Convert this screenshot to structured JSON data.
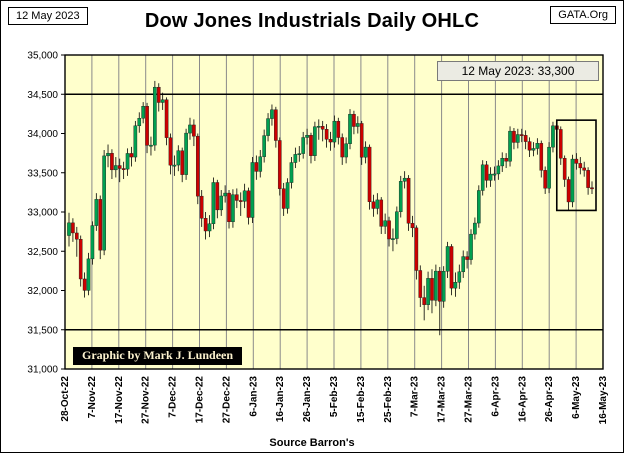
{
  "header": {
    "date_label": "12 May 2023",
    "org_label": "GATA.Org",
    "title": "Dow Jones Industrials Daily OHLC"
  },
  "footer": {
    "source": "Source Barron's"
  },
  "chart_data": {
    "type": "candlestick",
    "title": "Dow Jones Industrials Daily OHLC",
    "ylim": [
      31000,
      35000
    ],
    "y_tick_step": 500,
    "y_tick_labels": [
      "31,000",
      "31,500",
      "32,000",
      "32,500",
      "33,000",
      "33,500",
      "34,000",
      "34,500",
      "35,000"
    ],
    "x_tick_labels": [
      "28-Oct-22",
      "7-Nov-22",
      "17-Nov-22",
      "27-Nov-22",
      "7-Dec-22",
      "17-Dec-22",
      "27-Dec-22",
      "6-Jan-23",
      "16-Jan-23",
      "26-Jan-23",
      "5-Feb-23",
      "15-Feb-23",
      "25-Feb-23",
      "7-Mar-23",
      "17-Mar-23",
      "27-Mar-23",
      "6-Apr-23",
      "16-Apr-23",
      "26-Apr-23",
      "6-May-23",
      "16-May-23"
    ],
    "grid": {
      "vertical": true,
      "horizontal": false
    },
    "grid_color": "#8a8a8a",
    "level_lines": [
      34500,
      31500
    ],
    "plot_bg": "#ffffcc",
    "up_color": "#00a050",
    "down_color": "#cc0000",
    "wick_color": "#000000",
    "annotation": {
      "text": "12 May 2023:  33,300"
    },
    "credit": {
      "text": "Graphic by Mark J. Lundeen"
    },
    "highlight": {
      "from_index": 126,
      "to_index": 134,
      "value_top": 34170,
      "value_bottom": 33020
    },
    "candles": [
      [
        32700,
        32990,
        32560,
        32862
      ],
      [
        32862,
        32920,
        32620,
        32733
      ],
      [
        32733,
        32810,
        32430,
        32653
      ],
      [
        32653,
        32700,
        32050,
        32147
      ],
      [
        32147,
        32230,
        31910,
        32001
      ],
      [
        32001,
        32480,
        31940,
        32403
      ],
      [
        32403,
        32880,
        32330,
        32827
      ],
      [
        32827,
        33240,
        32760,
        33161
      ],
      [
        33161,
        33210,
        32400,
        32514
      ],
      [
        32514,
        33790,
        32450,
        33715
      ],
      [
        33715,
        33860,
        33570,
        33748
      ],
      [
        33748,
        33800,
        33420,
        33537
      ],
      [
        33537,
        33700,
        33440,
        33592
      ],
      [
        33592,
        33680,
        33380,
        33554
      ],
      [
        33554,
        33640,
        33420,
        33546
      ],
      [
        33546,
        33810,
        33460,
        33746
      ],
      [
        33746,
        33830,
        33580,
        33700
      ],
      [
        33700,
        34160,
        33640,
        34098
      ],
      [
        34098,
        34270,
        34010,
        34194
      ],
      [
        34194,
        34400,
        34130,
        34347
      ],
      [
        34347,
        34390,
        33750,
        33849
      ],
      [
        33849,
        33960,
        33720,
        33852
      ],
      [
        33852,
        34670,
        33780,
        34590
      ],
      [
        34590,
        34640,
        34280,
        34395
      ],
      [
        34395,
        34520,
        34300,
        34430
      ],
      [
        34430,
        34460,
        33850,
        33947
      ],
      [
        33947,
        34000,
        33480,
        33596
      ],
      [
        33596,
        33720,
        33460,
        33598
      ],
      [
        33598,
        33850,
        33520,
        33781
      ],
      [
        33781,
        33820,
        33380,
        33476
      ],
      [
        33476,
        34060,
        33410,
        34005
      ],
      [
        34005,
        34200,
        33920,
        34109
      ],
      [
        34109,
        34180,
        33840,
        33966
      ],
      [
        33966,
        34000,
        33100,
        33202
      ],
      [
        33202,
        33280,
        32810,
        32920
      ],
      [
        32920,
        33000,
        32650,
        32758
      ],
      [
        32758,
        32960,
        32680,
        32850
      ],
      [
        32850,
        33440,
        32780,
        33376
      ],
      [
        33376,
        33410,
        32920,
        33027
      ],
      [
        33027,
        33280,
        32950,
        33204
      ],
      [
        33204,
        33340,
        33120,
        33241
      ],
      [
        33241,
        33280,
        32790,
        32875
      ],
      [
        32875,
        33290,
        32800,
        33221
      ],
      [
        33221,
        33300,
        33050,
        33147
      ],
      [
        33147,
        33250,
        32950,
        33136
      ],
      [
        33136,
        33360,
        33050,
        33270
      ],
      [
        33270,
        33310,
        32840,
        32930
      ],
      [
        32930,
        33700,
        32860,
        33631
      ],
      [
        33631,
        33720,
        33410,
        33517
      ],
      [
        33517,
        33790,
        33440,
        33704
      ],
      [
        33704,
        34050,
        33630,
        33973
      ],
      [
        33973,
        34260,
        33900,
        34190
      ],
      [
        34190,
        34370,
        34100,
        34303
      ],
      [
        34303,
        34340,
        33820,
        33911
      ],
      [
        33911,
        33950,
        33210,
        33297
      ],
      [
        33297,
        33370,
        32950,
        33045
      ],
      [
        33045,
        33430,
        32980,
        33375
      ],
      [
        33375,
        33700,
        33300,
        33630
      ],
      [
        33630,
        33820,
        33560,
        33734
      ],
      [
        33734,
        33840,
        33640,
        33744
      ],
      [
        33744,
        34020,
        33680,
        33949
      ],
      [
        33949,
        34060,
        33860,
        33978
      ],
      [
        33978,
        34010,
        33620,
        33717
      ],
      [
        33717,
        34150,
        33650,
        34086
      ],
      [
        34086,
        34180,
        33920,
        34093
      ],
      [
        34093,
        34160,
        33900,
        34054
      ],
      [
        34054,
        34120,
        33820,
        33926
      ],
      [
        33926,
        34020,
        33780,
        33891
      ],
      [
        33891,
        34230,
        33820,
        34157
      ],
      [
        34157,
        34200,
        33860,
        33949
      ],
      [
        33949,
        34000,
        33600,
        33700
      ],
      [
        33700,
        33950,
        33620,
        33869
      ],
      [
        33869,
        34310,
        33800,
        34246
      ],
      [
        34246,
        34290,
        33990,
        34089
      ],
      [
        34089,
        34220,
        34000,
        34128
      ],
      [
        34128,
        34160,
        33600,
        33697
      ],
      [
        33697,
        33900,
        33620,
        33827
      ],
      [
        33827,
        33860,
        33030,
        33130
      ],
      [
        33130,
        33220,
        32940,
        33045
      ],
      [
        33045,
        33240,
        32970,
        33154
      ],
      [
        33154,
        33190,
        32720,
        32817
      ],
      [
        32817,
        32980,
        32720,
        32889
      ],
      [
        32889,
        32940,
        32560,
        32656
      ],
      [
        32656,
        32790,
        32500,
        32662
      ],
      [
        32662,
        33070,
        32590,
        33003
      ],
      [
        33003,
        33460,
        32930,
        33391
      ],
      [
        33391,
        33520,
        33300,
        33431
      ],
      [
        33431,
        33470,
        32760,
        32856
      ],
      [
        32856,
        32950,
        32680,
        32798
      ],
      [
        32798,
        32830,
        32140,
        32255
      ],
      [
        32255,
        32320,
        31790,
        31910
      ],
      [
        31910,
        32060,
        31620,
        31819
      ],
      [
        31819,
        32240,
        31750,
        32155
      ],
      [
        32155,
        32270,
        31710,
        31875
      ],
      [
        31875,
        32330,
        31800,
        32247
      ],
      [
        32247,
        32300,
        31430,
        31862
      ],
      [
        31862,
        32310,
        31780,
        32245
      ],
      [
        32245,
        32620,
        32160,
        32561
      ],
      [
        32561,
        32590,
        31940,
        32030
      ],
      [
        32030,
        32230,
        31920,
        32105
      ],
      [
        32105,
        32330,
        32020,
        32238
      ],
      [
        32238,
        32510,
        32160,
        32432
      ],
      [
        32432,
        32500,
        32280,
        32394
      ],
      [
        32394,
        32780,
        32330,
        32718
      ],
      [
        32718,
        32930,
        32650,
        32859
      ],
      [
        32859,
        33340,
        32800,
        33274
      ],
      [
        33274,
        33660,
        33210,
        33601
      ],
      [
        33601,
        33650,
        33310,
        33403
      ],
      [
        33403,
        33570,
        33320,
        33483
      ],
      [
        33483,
        33580,
        33400,
        33485
      ],
      [
        33485,
        33660,
        33410,
        33587
      ],
      [
        33587,
        33760,
        33510,
        33685
      ],
      [
        33685,
        33750,
        33560,
        33647
      ],
      [
        33647,
        34090,
        33580,
        34030
      ],
      [
        34030,
        34070,
        33800,
        33886
      ],
      [
        33886,
        34060,
        33810,
        33987
      ],
      [
        33987,
        34060,
        33890,
        33977
      ],
      [
        33977,
        34040,
        33800,
        33897
      ],
      [
        33897,
        33950,
        33700,
        33786
      ],
      [
        33786,
        33890,
        33710,
        33809
      ],
      [
        33809,
        33940,
        33730,
        33875
      ],
      [
        33875,
        33910,
        33440,
        33531
      ],
      [
        33531,
        33580,
        33230,
        33302
      ],
      [
        33302,
        33890,
        33240,
        33826
      ],
      [
        33826,
        34150,
        33760,
        34098
      ],
      [
        34098,
        34160,
        33940,
        34052
      ],
      [
        34052,
        34090,
        33600,
        33685
      ],
      [
        33685,
        33720,
        33320,
        33414
      ],
      [
        33414,
        33450,
        33020,
        33128
      ],
      [
        33128,
        33730,
        33060,
        33674
      ],
      [
        33674,
        33750,
        33540,
        33619
      ],
      [
        33619,
        33700,
        33480,
        33562
      ],
      [
        33562,
        33640,
        33450,
        33531
      ],
      [
        33531,
        33570,
        33220,
        33310
      ],
      [
        33310,
        33390,
        33230,
        33300
      ]
    ]
  }
}
